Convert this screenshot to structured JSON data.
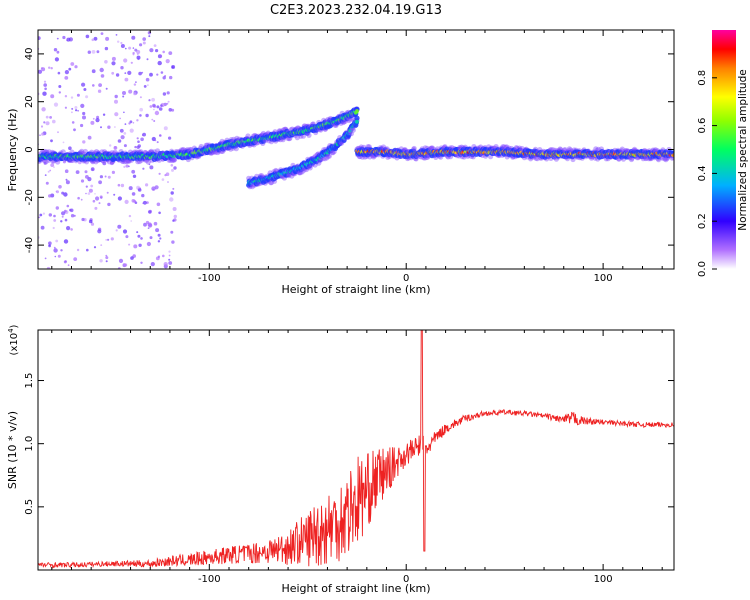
{
  "title": "C2E3.2023.232.04.19.G13",
  "chart_data": [
    {
      "type": "heatmap",
      "xlabel": "Height of straight line (km)",
      "ylabel": "Frequency (Hz)",
      "xlim": [
        -187,
        136
      ],
      "ylim": [
        -50,
        50
      ],
      "xticks": [
        -100,
        0,
        100
      ],
      "yticks": [
        -40,
        -20,
        0,
        20,
        40
      ],
      "colorbar": {
        "label": "Normalized spectral amplitude",
        "range": [
          0,
          1
        ],
        "ticks": [
          "0.0",
          "0.2",
          "0.4",
          "0.6",
          "0.8"
        ]
      },
      "ridges": [
        {
          "x": [
            -187,
            -160,
            -130,
            -110,
            -90,
            -70,
            -50,
            -35,
            -25
          ],
          "y": [
            -3,
            -3,
            -3,
            -2,
            2,
            5,
            8,
            12,
            16
          ],
          "level": 0.55
        },
        {
          "x": [
            -80,
            -70,
            -55,
            -45,
            -38,
            -30,
            -25
          ],
          "y": [
            -14,
            -12,
            -8,
            -4,
            0,
            6,
            12
          ],
          "level": 0.45
        },
        {
          "x": [
            -25,
            -10,
            0,
            20,
            50,
            70,
            100,
            136
          ],
          "y": [
            -1,
            -1,
            -2,
            -1,
            -1,
            -2,
            -2,
            -2
          ],
          "level": 0.85
        }
      ]
    },
    {
      "type": "line",
      "xlabel": "Height of straight line (km)",
      "ylabel": "SNR (10 * v/v)",
      "yunit_label": "(x10",
      "yunit_exp": "4",
      "yunit_close": ")",
      "xlim": [
        -187,
        136
      ],
      "ylim": [
        0,
        1.9
      ],
      "xticks": [
        -100,
        0,
        100
      ],
      "yticks": [
        "0.5",
        "1.0",
        "1.5"
      ],
      "series": [
        {
          "color": "#ee2222",
          "x": [
            -187,
            -170,
            -150,
            -130,
            -120,
            -110,
            -100,
            -90,
            -80,
            -70,
            -60,
            -55,
            -50,
            -45,
            -40,
            -35,
            -30,
            -25,
            -20,
            -15,
            -10,
            -5,
            0,
            5,
            8,
            10,
            15,
            20,
            30,
            40,
            50,
            60,
            70,
            80,
            85,
            90,
            100,
            110,
            120,
            136
          ],
          "y": [
            0.04,
            0.04,
            0.05,
            0.05,
            0.07,
            0.08,
            0.1,
            0.12,
            0.13,
            0.15,
            0.18,
            0.22,
            0.25,
            0.3,
            0.33,
            0.38,
            0.45,
            0.55,
            0.62,
            0.72,
            0.78,
            0.85,
            0.92,
            0.97,
            1.0,
            0.95,
            1.05,
            1.12,
            1.2,
            1.24,
            1.25,
            1.24,
            1.22,
            1.19,
            1.2,
            1.18,
            1.17,
            1.16,
            1.15,
            1.15
          ],
          "noise": [
            0.02,
            0.02,
            0.02,
            0.03,
            0.04,
            0.05,
            0.06,
            0.07,
            0.08,
            0.1,
            0.14,
            0.18,
            0.22,
            0.28,
            0.3,
            0.32,
            0.35,
            0.38,
            0.3,
            0.25,
            0.2,
            0.12,
            0.1,
            0.08,
            0.1,
            0.08,
            0.05,
            0.04,
            0.03,
            0.02,
            0.02,
            0.02,
            0.02,
            0.03,
            0.06,
            0.03,
            0.02,
            0.02,
            0.02,
            0.02
          ]
        }
      ]
    }
  ]
}
